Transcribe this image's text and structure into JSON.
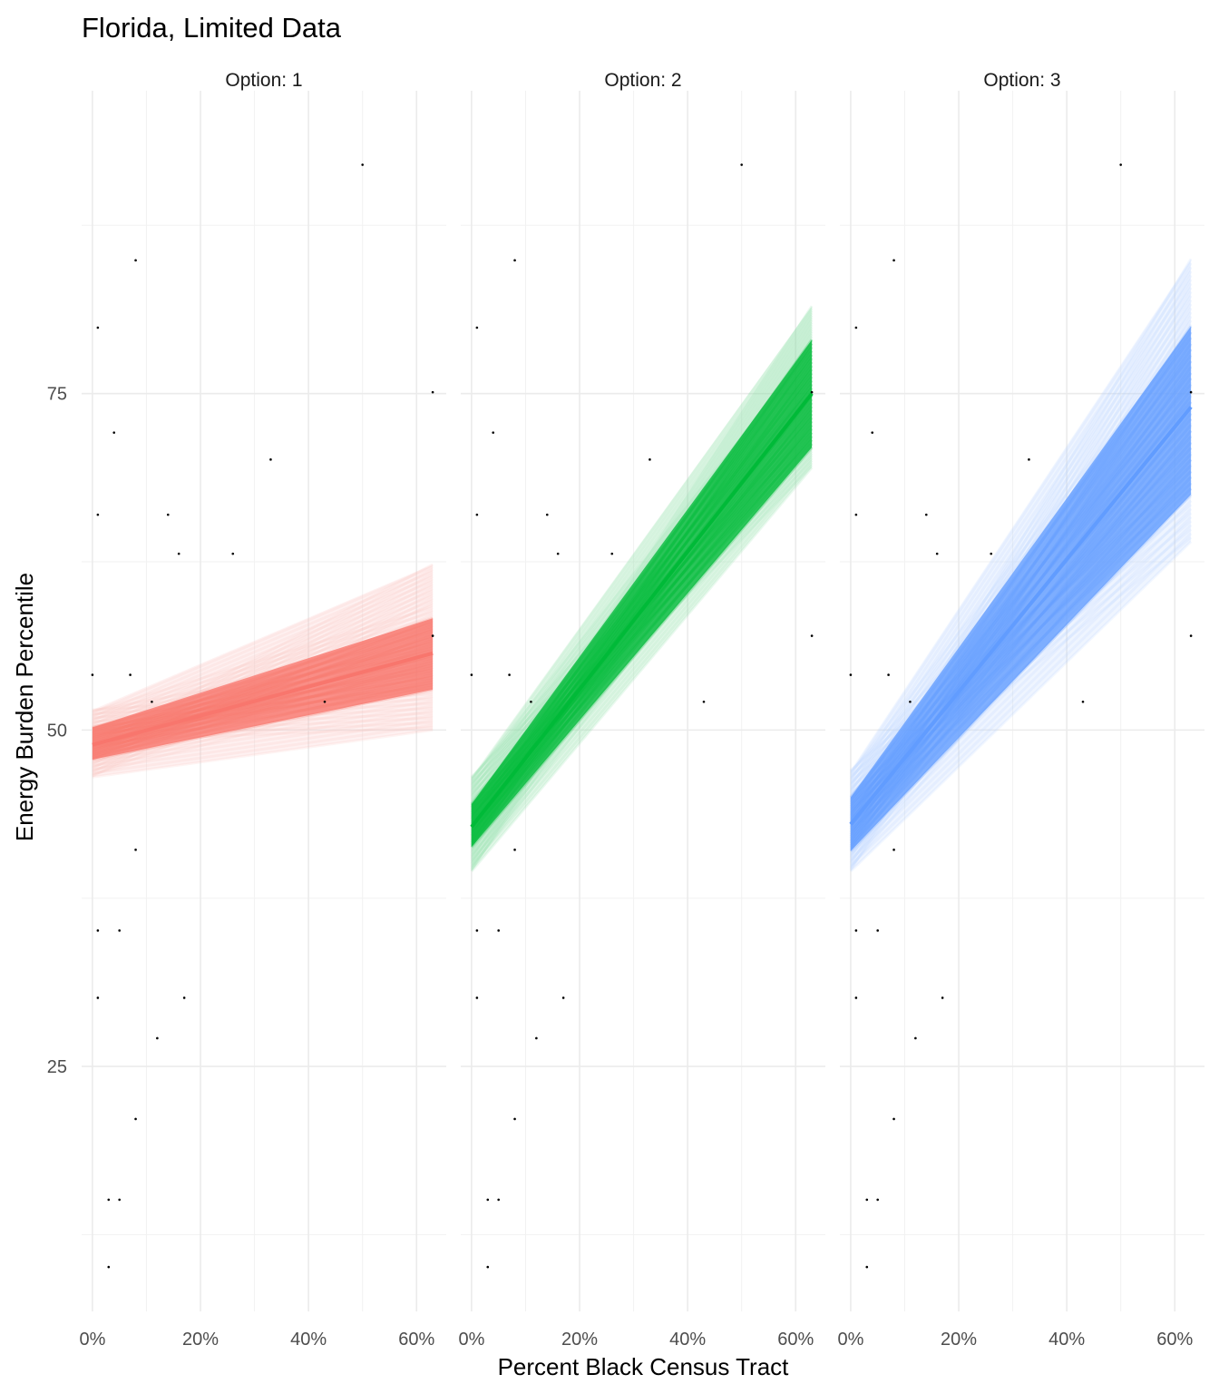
{
  "chart_data": {
    "type": "line",
    "title": "Florida, Limited Data",
    "xlabel": "Percent Black Census Tract",
    "ylabel": "Energy Burden Percentile",
    "x_tick_labels": [
      "0%",
      "20%",
      "40%",
      "60%"
    ],
    "x_ticks": [
      0,
      0.2,
      0.4,
      0.6
    ],
    "xlim": [
      -0.02,
      0.655
    ],
    "y_tick_labels": [
      "25",
      "50",
      "75"
    ],
    "y_ticks": [
      25,
      50,
      75
    ],
    "ylim": [
      6.8,
      97.5
    ],
    "grid": true,
    "legend": "none",
    "panels": [
      {
        "strip": "Option: 1",
        "color": "#F8766D",
        "band": {
          "x": [
            0,
            0.63
          ],
          "mean": [
            48.9,
            55.7
          ],
          "core_low": [
            47.8,
            53.0
          ],
          "core_high": [
            50.2,
            58.3
          ],
          "outer_low": [
            46.5,
            50.0
          ],
          "outer_high": [
            51.5,
            62.3
          ]
        }
      },
      {
        "strip": "Option: 2",
        "color": "#00BA38",
        "band": {
          "x": [
            0,
            0.63
          ],
          "mean": [
            42.8,
            75.0
          ],
          "core_low": [
            41.3,
            71.0
          ],
          "core_high": [
            44.5,
            79.0
          ],
          "outer_low": [
            39.5,
            69.5
          ],
          "outer_high": [
            46.5,
            81.5
          ]
        }
      },
      {
        "strip": "Option: 3",
        "color": "#619CFF",
        "band": {
          "x": [
            0,
            0.63
          ],
          "mean": [
            43.0,
            74.0
          ],
          "core_low": [
            41.0,
            67.5
          ],
          "core_high": [
            45.0,
            80.0
          ],
          "outer_low": [
            39.5,
            64.0
          ],
          "outer_high": [
            47.0,
            85.0
          ]
        }
      }
    ],
    "points": [
      {
        "x": 0.5,
        "y": 92.0
      },
      {
        "x": 0.08,
        "y": 84.9
      },
      {
        "x": 0.01,
        "y": 79.9
      },
      {
        "x": 0.63,
        "y": 75.1
      },
      {
        "x": 0.04,
        "y": 72.1
      },
      {
        "x": 0.33,
        "y": 70.1
      },
      {
        "x": 0.01,
        "y": 66.0
      },
      {
        "x": 0.14,
        "y": 66.0
      },
      {
        "x": 0.16,
        "y": 63.1
      },
      {
        "x": 0.26,
        "y": 63.1
      },
      {
        "x": 0.63,
        "y": 57.0
      },
      {
        "x": 0.0,
        "y": 54.1
      },
      {
        "x": 0.07,
        "y": 54.1
      },
      {
        "x": 0.11,
        "y": 52.1
      },
      {
        "x": 0.43,
        "y": 52.1
      },
      {
        "x": 0.08,
        "y": 41.1
      },
      {
        "x": 0.01,
        "y": 35.1
      },
      {
        "x": 0.05,
        "y": 35.1
      },
      {
        "x": 0.01,
        "y": 30.1
      },
      {
        "x": 0.17,
        "y": 30.1
      },
      {
        "x": 0.12,
        "y": 27.1
      },
      {
        "x": 0.08,
        "y": 21.1
      },
      {
        "x": 0.03,
        "y": 15.1
      },
      {
        "x": 0.05,
        "y": 15.1
      },
      {
        "x": 0.03,
        "y": 10.1
      }
    ]
  }
}
